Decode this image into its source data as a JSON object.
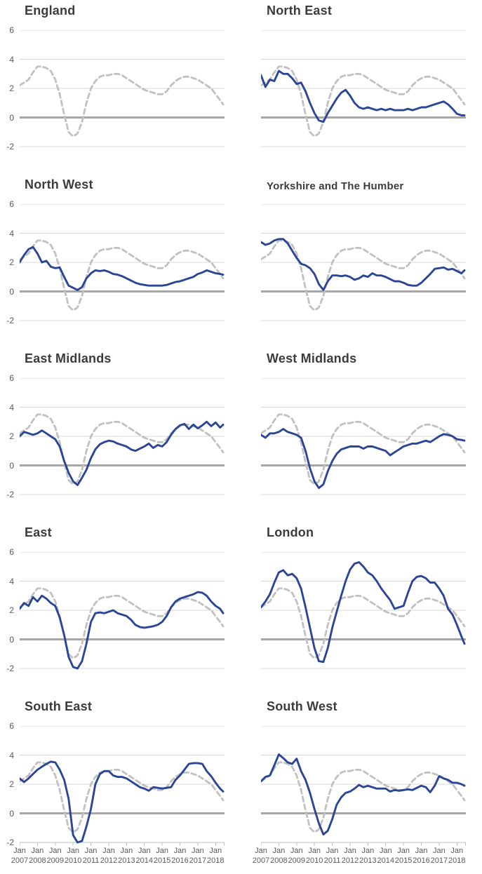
{
  "colors": {
    "region_line": "#2B4696",
    "england_line": "#C1C1C1",
    "zero_line": "#A6A6A6",
    "gridline": "#D9D9D9",
    "axis_line": "#BDBDBD",
    "tick_text": "#595959",
    "title_text": "#3C3C3C",
    "background": "#FFFFFF"
  },
  "chart_data": {
    "type": "line",
    "layout": {
      "columns": 2,
      "rows": 5,
      "grid": "small-multiples",
      "legend": "none"
    },
    "y_axis": {
      "ticks": [
        6,
        4,
        2,
        0,
        -2
      ],
      "min": -2,
      "max": 6,
      "labels_on": "left-column-only"
    },
    "x_axis": {
      "tick_month_label": "Jan",
      "tick_years": [
        "2007",
        "2008",
        "2009",
        "2010",
        "2011",
        "2012",
        "2013",
        "2014",
        "2015",
        "2016",
        "2017",
        "2018"
      ],
      "x_min": 2007,
      "x_max": 2018.5,
      "labels_on": "bottom-row-only"
    },
    "x": [
      2007.0,
      2007.25,
      2007.5,
      2007.75,
      2008.0,
      2008.25,
      2008.5,
      2008.75,
      2009.0,
      2009.25,
      2009.5,
      2009.75,
      2010.0,
      2010.25,
      2010.5,
      2010.75,
      2011.0,
      2011.25,
      2011.5,
      2011.75,
      2012.0,
      2012.25,
      2012.5,
      2012.75,
      2013.0,
      2013.25,
      2013.5,
      2013.75,
      2014.0,
      2014.25,
      2014.5,
      2014.75,
      2015.0,
      2015.25,
      2015.5,
      2015.75,
      2016.0,
      2016.25,
      2016.5,
      2016.75,
      2017.0,
      2017.25,
      2017.5,
      2017.75,
      2018.0,
      2018.25,
      2018.42
    ],
    "reference_series": {
      "name": "England",
      "style": "dashed",
      "values": [
        2.2,
        2.4,
        2.6,
        3.1,
        3.5,
        3.5,
        3.4,
        3.2,
        2.6,
        1.6,
        0.2,
        -1.0,
        -1.3,
        -1.1,
        -0.3,
        1.0,
        2.0,
        2.5,
        2.8,
        2.9,
        2.9,
        3.0,
        3.0,
        2.9,
        2.7,
        2.5,
        2.3,
        2.1,
        1.9,
        1.8,
        1.7,
        1.6,
        1.6,
        1.8,
        2.2,
        2.5,
        2.7,
        2.8,
        2.8,
        2.7,
        2.6,
        2.4,
        2.2,
        2.0,
        1.6,
        1.2,
        0.9
      ]
    },
    "charts": [
      {
        "title": "England",
        "region_values": null
      },
      {
        "title": "North East",
        "region_values": [
          2.9,
          2.1,
          2.6,
          2.5,
          3.2,
          3.0,
          3.0,
          2.7,
          2.3,
          2.4,
          1.8,
          1.0,
          0.3,
          -0.2,
          -0.3,
          0.3,
          0.8,
          1.3,
          1.7,
          1.9,
          1.5,
          1.0,
          0.7,
          0.6,
          0.7,
          0.6,
          0.5,
          0.6,
          0.5,
          0.6,
          0.5,
          0.5,
          0.5,
          0.6,
          0.5,
          0.6,
          0.7,
          0.7,
          0.8,
          0.9,
          1.0,
          1.1,
          0.9,
          0.6,
          0.25,
          0.15,
          0.15
        ]
      },
      {
        "title": "North West",
        "region_values": [
          2.0,
          2.5,
          2.9,
          3.05,
          2.6,
          2.0,
          2.1,
          1.7,
          1.6,
          1.65,
          1.0,
          0.4,
          0.25,
          0.1,
          0.3,
          0.9,
          1.25,
          1.45,
          1.4,
          1.45,
          1.35,
          1.2,
          1.15,
          1.05,
          0.9,
          0.75,
          0.6,
          0.5,
          0.45,
          0.4,
          0.4,
          0.4,
          0.4,
          0.45,
          0.55,
          0.65,
          0.7,
          0.8,
          0.9,
          1.0,
          1.2,
          1.3,
          1.45,
          1.35,
          1.25,
          1.2,
          1.15
        ]
      },
      {
        "title": "Yorkshire and The Humber",
        "region_values": [
          3.4,
          3.2,
          3.3,
          3.5,
          3.6,
          3.6,
          3.3,
          2.8,
          2.3,
          1.9,
          1.8,
          1.6,
          1.2,
          0.5,
          0.1,
          0.7,
          1.1,
          1.1,
          1.05,
          1.1,
          1.0,
          0.8,
          0.9,
          1.1,
          1.0,
          1.25,
          1.1,
          1.1,
          1.0,
          0.85,
          0.7,
          0.7,
          0.6,
          0.45,
          0.4,
          0.4,
          0.6,
          0.9,
          1.2,
          1.55,
          1.6,
          1.65,
          1.5,
          1.55,
          1.4,
          1.25,
          1.45
        ]
      },
      {
        "title": "East Midlands",
        "region_values": [
          2.0,
          2.3,
          2.2,
          2.1,
          2.2,
          2.4,
          2.2,
          2.0,
          1.8,
          1.3,
          0.3,
          -0.5,
          -1.1,
          -1.35,
          -0.85,
          -0.3,
          0.5,
          1.1,
          1.45,
          1.6,
          1.7,
          1.65,
          1.5,
          1.4,
          1.3,
          1.1,
          1.0,
          1.15,
          1.3,
          1.5,
          1.2,
          1.4,
          1.3,
          1.6,
          2.1,
          2.5,
          2.75,
          2.85,
          2.5,
          2.8,
          2.55,
          2.75,
          3.0,
          2.7,
          2.95,
          2.6,
          2.8
        ]
      },
      {
        "title": "West Midlands",
        "region_values": [
          2.1,
          1.9,
          2.2,
          2.2,
          2.3,
          2.5,
          2.3,
          2.2,
          2.1,
          1.9,
          1.0,
          -0.2,
          -1.1,
          -1.55,
          -1.3,
          -0.4,
          0.3,
          0.8,
          1.1,
          1.2,
          1.3,
          1.3,
          1.3,
          1.15,
          1.3,
          1.3,
          1.2,
          1.1,
          1.0,
          0.7,
          0.9,
          1.1,
          1.3,
          1.4,
          1.5,
          1.5,
          1.6,
          1.7,
          1.6,
          1.8,
          2.0,
          2.15,
          2.1,
          2.0,
          1.8,
          1.75,
          1.7
        ]
      },
      {
        "title": "East",
        "region_values": [
          2.1,
          2.5,
          2.3,
          2.9,
          2.6,
          3.0,
          2.8,
          2.5,
          2.3,
          1.5,
          0.3,
          -1.2,
          -1.9,
          -2.0,
          -1.5,
          -0.3,
          1.2,
          1.8,
          1.85,
          1.8,
          1.9,
          2.0,
          1.8,
          1.7,
          1.6,
          1.35,
          1.0,
          0.85,
          0.8,
          0.85,
          0.9,
          1.0,
          1.2,
          1.6,
          2.2,
          2.6,
          2.8,
          2.9,
          3.0,
          3.1,
          3.25,
          3.2,
          3.0,
          2.6,
          2.3,
          2.1,
          1.8
        ]
      },
      {
        "title": "London",
        "region_values": [
          2.2,
          2.6,
          3.1,
          3.9,
          4.6,
          4.75,
          4.4,
          4.5,
          4.2,
          3.5,
          2.2,
          0.8,
          -0.6,
          -1.5,
          -1.55,
          -0.6,
          0.8,
          1.9,
          3.0,
          4.0,
          4.8,
          5.2,
          5.3,
          5.0,
          4.6,
          4.4,
          4.0,
          3.5,
          3.1,
          2.7,
          2.1,
          2.2,
          2.3,
          3.2,
          4.0,
          4.3,
          4.35,
          4.2,
          3.9,
          3.9,
          3.5,
          3.0,
          2.1,
          1.7,
          1.0,
          0.2,
          -0.3
        ]
      },
      {
        "title": "South East",
        "region_values": [
          2.4,
          2.15,
          2.4,
          2.7,
          3.0,
          3.2,
          3.4,
          3.55,
          3.5,
          3.0,
          2.3,
          1.0,
          -1.5,
          -2.0,
          -1.9,
          -0.9,
          0.3,
          2.0,
          2.7,
          2.9,
          2.9,
          2.6,
          2.5,
          2.5,
          2.4,
          2.2,
          2.0,
          1.8,
          1.7,
          1.55,
          1.8,
          1.75,
          1.7,
          1.75,
          1.8,
          2.3,
          2.6,
          3.0,
          3.4,
          3.45,
          3.45,
          3.4,
          2.9,
          2.55,
          2.1,
          1.7,
          1.5
        ]
      },
      {
        "title": "South West",
        "region_values": [
          2.2,
          2.5,
          2.6,
          3.3,
          4.05,
          3.8,
          3.5,
          3.4,
          3.75,
          2.9,
          2.3,
          1.4,
          0.3,
          -0.7,
          -1.45,
          -1.2,
          -0.4,
          0.6,
          1.1,
          1.4,
          1.5,
          1.7,
          1.95,
          1.8,
          1.9,
          1.8,
          1.7,
          1.7,
          1.7,
          1.5,
          1.6,
          1.55,
          1.6,
          1.65,
          1.6,
          1.75,
          1.9,
          1.8,
          1.45,
          1.9,
          2.55,
          2.4,
          2.3,
          2.1,
          2.1,
          2.0,
          1.9
        ]
      }
    ]
  }
}
